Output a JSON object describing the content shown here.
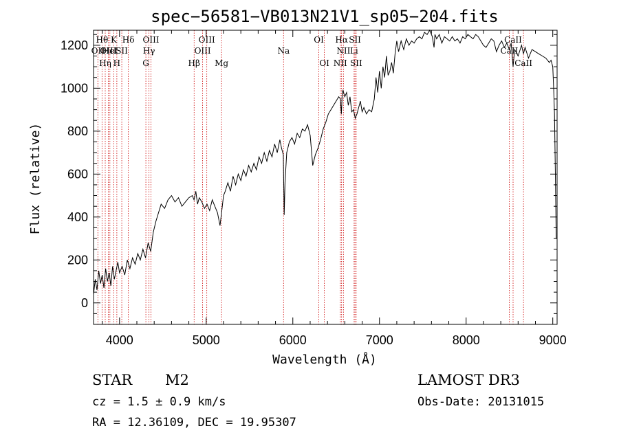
{
  "chart_data": {
    "type": "line",
    "title": "spec−56581−VB013N21V1_sp05−204.fits",
    "xlabel": "Wavelength (Å)",
    "ylabel": "Flux (relative)",
    "xlim": [
      3700,
      9050
    ],
    "ylim": [
      -100,
      1270
    ],
    "x_ticks": [
      4000,
      5000,
      6000,
      7000,
      8000,
      9000
    ],
    "y_ticks": [
      0,
      200,
      400,
      600,
      800,
      1000,
      1200
    ],
    "x_minor_step": 200,
    "y_minor_step": 50,
    "series": [
      {
        "name": "flux",
        "x": [
          3700,
          3720,
          3740,
          3760,
          3780,
          3800,
          3820,
          3840,
          3860,
          3880,
          3900,
          3920,
          3940,
          3960,
          3980,
          4000,
          4030,
          4060,
          4090,
          4120,
          4150,
          4180,
          4210,
          4240,
          4270,
          4300,
          4330,
          4360,
          4390,
          4420,
          4450,
          4480,
          4520,
          4560,
          4600,
          4640,
          4680,
          4720,
          4760,
          4800,
          4840,
          4860,
          4880,
          4900,
          4920,
          4950,
          4980,
          5010,
          5040,
          5070,
          5100,
          5130,
          5160,
          5180,
          5200,
          5220,
          5250,
          5280,
          5310,
          5340,
          5370,
          5400,
          5430,
          5460,
          5490,
          5520,
          5550,
          5580,
          5610,
          5640,
          5670,
          5700,
          5730,
          5760,
          5790,
          5820,
          5850,
          5870,
          5890,
          5895,
          5900,
          5910,
          5930,
          5960,
          5990,
          6020,
          6050,
          6080,
          6110,
          6140,
          6170,
          6200,
          6230,
          6260,
          6290,
          6320,
          6350,
          6380,
          6410,
          6440,
          6470,
          6500,
          6530,
          6550,
          6560,
          6565,
          6570,
          6580,
          6600,
          6620,
          6640,
          6660,
          6680,
          6700,
          6720,
          6740,
          6760,
          6780,
          6800,
          6820,
          6850,
          6880,
          6910,
          6940,
          6960,
          6980,
          7000,
          7020,
          7040,
          7060,
          7080,
          7100,
          7120,
          7140,
          7160,
          7180,
          7200,
          7220,
          7250,
          7280,
          7310,
          7340,
          7370,
          7400,
          7430,
          7460,
          7490,
          7520,
          7550,
          7580,
          7610,
          7630,
          7640,
          7660,
          7690,
          7720,
          7750,
          7780,
          7810,
          7840,
          7870,
          7900,
          7930,
          7960,
          7990,
          8020,
          8050,
          8080,
          8110,
          8140,
          8170,
          8200,
          8230,
          8260,
          8290,
          8320,
          8350,
          8380,
          8410,
          8440,
          8470,
          8498,
          8520,
          8542,
          8560,
          8600,
          8640,
          8662,
          8680,
          8720,
          8760,
          8800,
          8840,
          8880,
          8920,
          8960,
          8980,
          9000,
          9010,
          9020,
          9030,
          9040
        ],
        "y": [
          40,
          110,
          60,
          150,
          90,
          130,
          70,
          160,
          100,
          140,
          80,
          170,
          110,
          150,
          190,
          140,
          170,
          130,
          200,
          160,
          210,
          180,
          230,
          200,
          250,
          210,
          280,
          240,
          330,
          380,
          420,
          460,
          440,
          480,
          500,
          470,
          490,
          450,
          470,
          490,
          500,
          480,
          520,
          460,
          490,
          470,
          440,
          460,
          430,
          480,
          450,
          420,
          360,
          430,
          500,
          520,
          560,
          520,
          590,
          550,
          600,
          570,
          620,
          590,
          640,
          610,
          650,
          620,
          680,
          650,
          700,
          660,
          710,
          680,
          740,
          700,
          760,
          720,
          690,
          560,
          410,
          560,
          700,
          750,
          770,
          740,
          790,
          770,
          810,
          800,
          830,
          780,
          640,
          690,
          720,
          760,
          810,
          840,
          880,
          900,
          920,
          940,
          960,
          950,
          880,
          920,
          980,
          990,
          960,
          980,
          920,
          960,
          890,
          900,
          860,
          880,
          910,
          940,
          890,
          910,
          880,
          900,
          890,
          950,
          1050,
          980,
          1080,
          1000,
          1100,
          1050,
          1150,
          1060,
          1080,
          1120,
          1070,
          1160,
          1220,
          1170,
          1220,
          1180,
          1230,
          1200,
          1220,
          1210,
          1230,
          1240,
          1230,
          1260,
          1250,
          1270,
          1240,
          1190,
          1250,
          1230,
          1250,
          1210,
          1240,
          1230,
          1220,
          1240,
          1220,
          1230,
          1210,
          1240,
          1230,
          1250,
          1240,
          1230,
          1250,
          1240,
          1220,
          1200,
          1190,
          1210,
          1230,
          1220,
          1170,
          1200,
          1220,
          1190,
          1210,
          1180,
          1210,
          1100,
          1180,
          1150,
          1200,
          1160,
          1190,
          1140,
          1180,
          1170,
          1160,
          1150,
          1140,
          1120,
          1130,
          1100,
          1000,
          880,
          600,
          300
        ]
      }
    ],
    "lines": [
      {
        "x": 3750,
        "label": "OII",
        "row": 2
      },
      {
        "x": 3798,
        "label": "Hθ",
        "row": 1
      },
      {
        "x": 3835,
        "label": "Hη",
        "row": 3
      },
      {
        "x": 3870,
        "label": "OIII",
        "row": 2
      },
      {
        "x": 3889,
        "label": "HeI",
        "row": 2
      },
      {
        "x": 3934,
        "label": "K",
        "row": 1
      },
      {
        "x": 3969,
        "label": "H",
        "row": 3
      },
      {
        "x": 4026,
        "label": "SII",
        "row": 2
      },
      {
        "x": 4102,
        "label": "Hδ",
        "row": 1
      },
      {
        "x": 4304,
        "label": "G",
        "row": 3
      },
      {
        "x": 4340,
        "label": "Hγ",
        "row": 2
      },
      {
        "x": 4363,
        "label": "OIII",
        "row": 1
      },
      {
        "x": 4861,
        "label": "Hβ",
        "row": 3
      },
      {
        "x": 4959,
        "label": "OIII",
        "row": 2
      },
      {
        "x": 5007,
        "label": "OIII",
        "row": 1
      },
      {
        "x": 5177,
        "label": "Mg",
        "row": 3
      },
      {
        "x": 5893,
        "label": "Na",
        "row": 2
      },
      {
        "x": 6300,
        "label": "OI",
        "row": 1
      },
      {
        "x": 6364,
        "label": "OI",
        "row": 3
      },
      {
        "x": 6548,
        "label": "NII",
        "row": 3
      },
      {
        "x": 6563,
        "label": "Hα",
        "row": 1
      },
      {
        "x": 6584,
        "label": "NII",
        "row": 2
      },
      {
        "x": 6707,
        "label": "Li",
        "row": 2
      },
      {
        "x": 6717,
        "label": "SII",
        "row": 1
      },
      {
        "x": 6731,
        "label": "SII",
        "row": 3
      },
      {
        "x": 8498,
        "label": "CaII",
        "row": 2
      },
      {
        "x": 8542,
        "label": "CaII",
        "row": 1
      },
      {
        "x": 8662,
        "label": "CaII",
        "row": 3
      }
    ]
  },
  "info": {
    "object_type": "STAR",
    "subclass": "M2",
    "survey": "LAMOST DR3",
    "redshift": "cz =  1.5 ± 0.9 km/s",
    "obs_date": "Obs-Date: 20131015",
    "coords": "RA =  12.36109, DEC =  19.95307"
  },
  "colors": {
    "axis": "#000000",
    "spectrum": "#000000",
    "line_marker": "#cc0000",
    "background": "#ffffff"
  }
}
